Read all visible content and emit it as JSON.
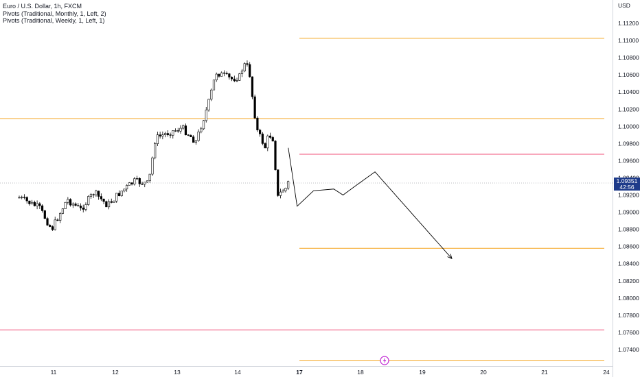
{
  "legend": {
    "title": "Euro / U.S. Dollar, 1h, FXCM",
    "line1": "Pivots (Traditional, Monthly, 1, Left, 2)",
    "line2": "Pivots (Traditional, Weekly, 1, Left, 1)"
  },
  "price_axis": {
    "currency": "USD"
  },
  "current_price": {
    "value": "1.09351",
    "countdown": "42:56"
  },
  "colors": {
    "orange_pivot": "#f5a623",
    "red_pivot": "#f0507a",
    "candle": "#000000",
    "price_label_bg": "#1e3b8a",
    "event_icon": "#c026d3"
  },
  "chart_data": {
    "type": "candlestick",
    "title": "Euro / U.S. Dollar, 1h, FXCM",
    "y_range": [
      1.0727,
      1.1149
    ],
    "y_ticks": [
      "1.11200",
      "1.11000",
      "1.10800",
      "1.10600",
      "1.10400",
      "1.10200",
      "1.10000",
      "1.09800",
      "1.09600",
      "1.09400",
      "1.09200",
      "1.09000",
      "1.08800",
      "1.08600",
      "1.08400",
      "1.08200",
      "1.08000",
      "1.07800",
      "1.07600",
      "1.07400"
    ],
    "x_ticks": [
      "11",
      "12",
      "13",
      "14",
      "17",
      "18",
      "19",
      "20",
      "21",
      "24"
    ],
    "pivot_levels": [
      {
        "price": 1.11025,
        "color": "orange",
        "from": "17"
      },
      {
        "price": 1.1009,
        "color": "orange",
        "from": "start"
      },
      {
        "price": 1.09675,
        "color": "red",
        "from": "17"
      },
      {
        "price": 1.0858,
        "color": "orange",
        "from": "17"
      },
      {
        "price": 1.0763,
        "color": "red",
        "from": "start"
      },
      {
        "price": 1.07275,
        "color": "orange",
        "from": "17"
      }
    ],
    "current_price_line": 1.09351,
    "price_path": [
      {
        "x": "10.44",
        "price": 1.0917
      },
      {
        "x": "10.77",
        "price": 1.0905
      },
      {
        "x": "10.97",
        "price": 1.088
      },
      {
        "x": "11.22",
        "price": 1.0915
      },
      {
        "x": "11.44",
        "price": 1.0903
      },
      {
        "x": "11.66",
        "price": 1.0923
      },
      {
        "x": "11.88",
        "price": 1.0908
      },
      {
        "x": "12.10",
        "price": 1.0924
      },
      {
        "x": "12.32",
        "price": 1.0936
      },
      {
        "x": "12.55",
        "price": 1.0933
      },
      {
        "x": "12.66",
        "price": 1.0986
      },
      {
        "x": "12.88",
        "price": 1.0993
      },
      {
        "x": "13.10",
        "price": 1.0998
      },
      {
        "x": "13.32",
        "price": 1.0982
      },
      {
        "x": "13.52",
        "price": 1.1025
      },
      {
        "x": "13.65",
        "price": 1.1063
      },
      {
        "x": "13.90",
        "price": 1.1055
      },
      {
        "x": "14.10",
        "price": 1.1058
      },
      {
        "x": "14.30",
        "price": 1.1072
      },
      {
        "x": "14.55",
        "price": 1.1068
      },
      {
        "x": "14.75",
        "price": 1.1028
      },
      {
        "x": "14.95",
        "price": 1.0995
      },
      {
        "x": "15.15",
        "price": 1.0985
      },
      {
        "x": "15.35",
        "price": 1.0975
      },
      {
        "x": "15.50",
        "price": 1.099
      },
      {
        "x": "15.70",
        "price": 1.0988
      },
      {
        "x": "15.85",
        "price": 1.0948
      },
      {
        "x": "15.90",
        "price": 1.0915
      },
      {
        "x": "16.15",
        "price": 1.0925
      },
      {
        "x": "16.35",
        "price": 1.0928
      },
      {
        "x": "16.55",
        "price": 1.094
      }
    ],
    "projection": [
      {
        "x": "16.46",
        "price": 1.0975
      },
      {
        "x": "16.89",
        "price": 1.0907
      },
      {
        "x": "17.23",
        "price": 1.0925
      },
      {
        "x": "17.56",
        "price": 1.0927
      },
      {
        "x": "17.71",
        "price": 1.092
      },
      {
        "x": "17.90",
        "price": 1.093
      },
      {
        "x": "18.23",
        "price": 1.0947
      },
      {
        "x": "19.48",
        "price": 1.0846
      }
    ]
  }
}
